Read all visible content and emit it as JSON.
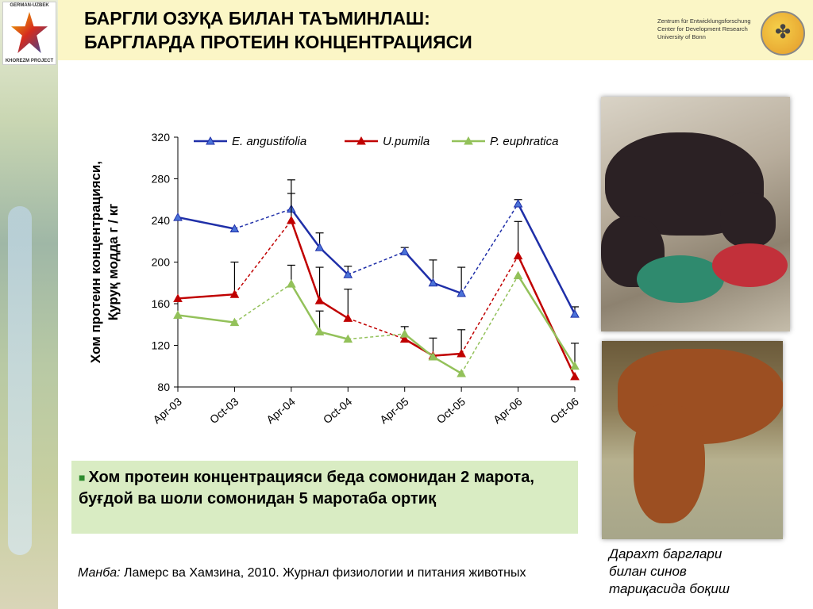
{
  "header": {
    "title_line1": "БАРГЛИ ОЗУҚА БИЛАН ТАЪМИНЛАШ:",
    "title_line2": "БАРГЛАРДА ПРОТЕИН КОНЦЕНТРАЦИЯСИ",
    "logo_left_top": "GERMAN-UZBEK",
    "logo_left_bottom": "KHOREZM PROJECT",
    "zef_line1": "Zentrum für Entwicklungsforschung",
    "zef_line2": "Center for Development Research",
    "zef_line3": "University of Bonn"
  },
  "chart_data": {
    "type": "line",
    "ylabel_line1": "Хом протеин концентрацияси,",
    "ylabel_line2": "Қуруқ модда г / кг",
    "ylim": [
      80,
      320
    ],
    "yticks": [
      80,
      120,
      160,
      200,
      240,
      280,
      320
    ],
    "x_ticks": [
      "Apr-03",
      "Oct-03",
      "Apr-04",
      "Oct-04",
      "Apr-05",
      "Oct-05",
      "Apr-06",
      "Oct-06"
    ],
    "grid": false,
    "legend_position": "top",
    "series": [
      {
        "name": "E. angustifolia",
        "color": "#1f2fa8",
        "marker_fill": "#4a72d8",
        "points": [
          {
            "x": "Apr-03",
            "y": 243,
            "err": null
          },
          {
            "x": "Oct-03",
            "y": 232,
            "err": null
          },
          {
            "x": "Apr-04",
            "y": 251,
            "err": 28
          },
          {
            "x": "Jul-04",
            "y": 214,
            "err": 14
          },
          {
            "x": "Oct-04",
            "y": 188,
            "err": 8
          },
          {
            "x": "Apr-05",
            "y": 210,
            "err": 4
          },
          {
            "x": "Jul-05",
            "y": 180,
            "err": 22
          },
          {
            "x": "Oct-05",
            "y": 170,
            "err": 25
          },
          {
            "x": "Apr-06",
            "y": 256,
            "err": 4
          },
          {
            "x": "Oct-06",
            "y": 150,
            "err": 7
          }
        ],
        "solid_segments": [
          [
            0,
            1
          ],
          [
            2,
            3
          ],
          [
            3,
            4
          ],
          [
            5,
            6
          ],
          [
            6,
            7
          ],
          [
            8,
            9
          ]
        ],
        "dashed_segments": [
          [
            1,
            2
          ],
          [
            4,
            5
          ],
          [
            7,
            8
          ]
        ]
      },
      {
        "name": "U.pumila",
        "color": "#c00000",
        "marker_fill": "#c00000",
        "points": [
          {
            "x": "Apr-03",
            "y": 165,
            "err": null
          },
          {
            "x": "Oct-03",
            "y": 169,
            "err": 31
          },
          {
            "x": "Apr-04",
            "y": 240,
            "err": 26
          },
          {
            "x": "Jul-04",
            "y": 163,
            "err": 32
          },
          {
            "x": "Oct-04",
            "y": 146,
            "err": 28
          },
          {
            "x": "Apr-05",
            "y": 126,
            "err": 12
          },
          {
            "x": "Jul-05",
            "y": 110,
            "err": 17
          },
          {
            "x": "Oct-05",
            "y": 112,
            "err": 23
          },
          {
            "x": "Apr-06",
            "y": 206,
            "err": 33
          },
          {
            "x": "Oct-06",
            "y": 90,
            "err": null
          }
        ],
        "solid_segments": [
          [
            0,
            1
          ],
          [
            2,
            3
          ],
          [
            3,
            4
          ],
          [
            5,
            6
          ],
          [
            6,
            7
          ],
          [
            8,
            9
          ]
        ],
        "dashed_segments": [
          [
            1,
            2
          ],
          [
            4,
            5
          ],
          [
            7,
            8
          ]
        ]
      },
      {
        "name": "P. euphratica",
        "color": "#93c15a",
        "marker_fill": "#93c15a",
        "points": [
          {
            "x": "Apr-03",
            "y": 149,
            "err": null
          },
          {
            "x": "Oct-03",
            "y": 142,
            "err": null
          },
          {
            "x": "Apr-04",
            "y": 179,
            "err": 18
          },
          {
            "x": "Jul-04",
            "y": 133,
            "err": 20
          },
          {
            "x": "Oct-04",
            "y": 126,
            "err": null
          },
          {
            "x": "Apr-05",
            "y": 131,
            "err": null
          },
          {
            "x": "Jul-05",
            "y": 109,
            "err": null
          },
          {
            "x": "Oct-05",
            "y": 93,
            "err": null
          },
          {
            "x": "Apr-06",
            "y": 187,
            "err": null
          },
          {
            "x": "Oct-06",
            "y": 100,
            "err": 22
          }
        ],
        "solid_segments": [
          [
            0,
            1
          ],
          [
            2,
            3
          ],
          [
            3,
            4
          ],
          [
            5,
            6
          ],
          [
            6,
            7
          ],
          [
            8,
            9
          ]
        ],
        "dashed_segments": [
          [
            1,
            2
          ],
          [
            4,
            5
          ],
          [
            7,
            8
          ]
        ]
      }
    ]
  },
  "note": {
    "text": "Хом протеин концентрацияси беда сомонидан 2 марота, буғдой ва шоли сомонидан 5 маротаба ортиқ"
  },
  "source": {
    "label": "Манба:",
    "text": "Ламерс ва Хамзина, 2010. Журнал физиологии и питания животных"
  },
  "photo_caption": {
    "line1": "Дарахт барглари",
    "line2": "билан синов",
    "line3": "тариқасида боқиш"
  },
  "colors": {
    "title_band": "#fbf6c6",
    "note_band": "#d9ecc3"
  }
}
